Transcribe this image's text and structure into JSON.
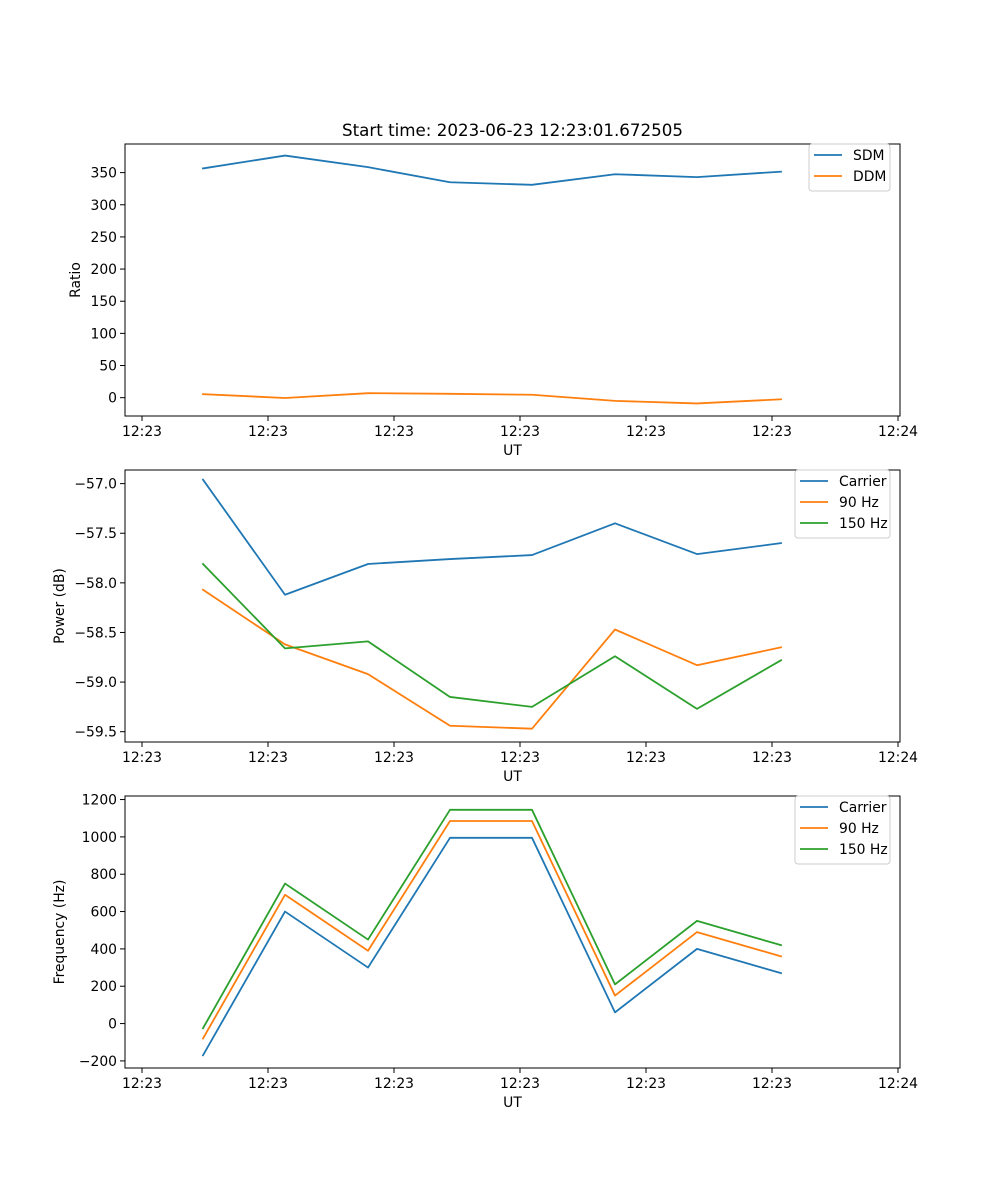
{
  "chart_data": [
    {
      "type": "line",
      "title": "Start time: 2023-06-23 12:23:01.672505",
      "xlabel": "UT",
      "ylabel": "Ratio",
      "x_ticks": [
        "12:23",
        "12:23",
        "12:23",
        "12:23",
        "12:23",
        "12:23",
        "12:24"
      ],
      "y_ticks": [
        "0",
        "50",
        "100",
        "150",
        "200",
        "250",
        "300",
        "350"
      ],
      "ylim": [
        -28.5,
        394.5
      ],
      "legend_position": "top-right",
      "series": [
        {
          "name": "SDM",
          "color": "#1f77b4",
          "values": [
            356.5,
            376.5,
            358.5,
            335.0,
            331.0,
            347.5,
            343.0,
            351.5
          ]
        },
        {
          "name": "DDM",
          "color": "#ff7f0e",
          "values": [
            5.5,
            -0.5,
            7.0,
            6.0,
            4.5,
            -5.0,
            -9.0,
            -2.5
          ]
        }
      ]
    },
    {
      "type": "line",
      "title": "",
      "xlabel": "UT",
      "ylabel": "Power (dB)",
      "x_ticks": [
        "12:23",
        "12:23",
        "12:23",
        "12:23",
        "12:23",
        "12:23",
        "12:24"
      ],
      "y_ticks": [
        "−59.5",
        "−59.0",
        "−58.5",
        "−58.0",
        "−57.5",
        "−57.0"
      ],
      "ylim": [
        -59.604,
        -56.8626
      ],
      "legend_position": "top-right",
      "series": [
        {
          "name": "Carrier",
          "color": "#1f77b4",
          "values": [
            -56.96,
            -58.12,
            -57.81,
            -57.76,
            -57.72,
            -57.4,
            -57.71,
            -57.6
          ]
        },
        {
          "name": "90 Hz",
          "color": "#ff7f0e",
          "values": [
            -58.07,
            -58.62,
            -58.92,
            -59.44,
            -59.47,
            -58.47,
            -58.83,
            -58.65
          ]
        },
        {
          "name": "150 Hz",
          "color": "#2ca02c",
          "values": [
            -57.81,
            -58.66,
            -58.59,
            -59.15,
            -59.25,
            -58.74,
            -59.27,
            -58.78
          ]
        }
      ]
    },
    {
      "type": "line",
      "title": "",
      "xlabel": "UT",
      "ylabel": "Frequency (Hz)",
      "x_ticks": [
        "12:23",
        "12:23",
        "12:23",
        "12:23",
        "12:23",
        "12:23",
        "12:24"
      ],
      "y_ticks": [
        "−200",
        "0",
        "200",
        "400",
        "600",
        "800",
        "1000",
        "1200"
      ],
      "ylim": [
        -238,
        1219
      ],
      "legend_position": "top-right",
      "series": [
        {
          "name": "Carrier",
          "color": "#1f77b4",
          "values": [
            -170,
            600,
            300,
            995,
            995,
            60,
            400,
            270
          ]
        },
        {
          "name": "90 Hz",
          "color": "#ff7f0e",
          "values": [
            -80,
            690,
            390,
            1085,
            1085,
            150,
            490,
            360
          ]
        },
        {
          "name": "150 Hz",
          "color": "#2ca02c",
          "values": [
            -25,
            750,
            450,
            1145,
            1145,
            210,
            550,
            420
          ]
        }
      ]
    }
  ]
}
